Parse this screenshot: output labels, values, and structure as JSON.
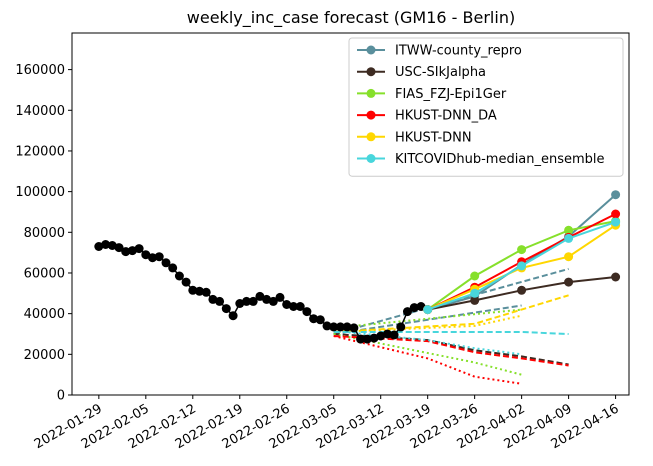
{
  "chart_data": {
    "type": "line",
    "title": "weekly_inc_case forecast (GM16 - Berlin)",
    "xlabel": "",
    "ylabel": "",
    "x_axis_type": "date",
    "xlim": [
      "2022-01-25",
      "2022-04-18"
    ],
    "ylim": [
      0,
      178000
    ],
    "x_ticks": [
      "2022-01-29",
      "2022-02-05",
      "2022-02-12",
      "2022-02-19",
      "2022-02-26",
      "2022-03-05",
      "2022-03-12",
      "2022-03-19",
      "2022-03-26",
      "2022-04-02",
      "2022-04-09",
      "2022-04-16"
    ],
    "y_ticks": [
      0,
      20000,
      40000,
      60000,
      80000,
      100000,
      120000,
      140000,
      160000
    ],
    "y_tick_labels": [
      "0",
      "20000",
      "40000",
      "60000",
      "80000",
      "100000",
      "120000",
      "140000",
      "160000"
    ],
    "grid": false,
    "legend_position": "top-right",
    "truth": {
      "color": "#000000",
      "x": [
        "2022-01-29",
        "2022-01-30",
        "2022-01-31",
        "2022-02-01",
        "2022-02-02",
        "2022-02-03",
        "2022-02-04",
        "2022-02-05",
        "2022-02-06",
        "2022-02-07",
        "2022-02-08",
        "2022-02-09",
        "2022-02-10",
        "2022-02-11",
        "2022-02-12",
        "2022-02-13",
        "2022-02-14",
        "2022-02-15",
        "2022-02-16",
        "2022-02-17",
        "2022-02-18",
        "2022-02-19",
        "2022-02-20",
        "2022-02-21",
        "2022-02-22",
        "2022-02-23",
        "2022-02-24",
        "2022-02-25",
        "2022-02-26",
        "2022-02-27",
        "2022-02-28",
        "2022-03-01",
        "2022-03-02",
        "2022-03-03",
        "2022-03-04",
        "2022-03-05",
        "2022-03-06",
        "2022-03-07",
        "2022-03-08",
        "2022-03-09",
        "2022-03-10",
        "2022-03-11",
        "2022-03-12",
        "2022-03-13",
        "2022-03-14",
        "2022-03-15",
        "2022-03-16",
        "2022-03-17",
        "2022-03-18",
        "2022-03-19"
      ],
      "values": [
        73000,
        74000,
        73500,
        72500,
        70500,
        71000,
        72000,
        69000,
        67500,
        68000,
        65000,
        62500,
        58500,
        55500,
        51500,
        51000,
        50500,
        47000,
        46000,
        42500,
        39000,
        45000,
        46000,
        46000,
        48500,
        47000,
        46000,
        48000,
        44500,
        43500,
        43500,
        41000,
        37500,
        37000,
        34000,
        33500,
        33500,
        33500,
        33000,
        27500,
        27500,
        28000,
        29000,
        30000,
        29500,
        33500,
        41000,
        43000,
        43500,
        42000
      ]
    },
    "series": [
      {
        "name": "ITWW-county_repro",
        "color": "#5a8f9c",
        "x": [
          "2022-03-19",
          "2022-03-26",
          "2022-04-02",
          "2022-04-09",
          "2022-04-16"
        ],
        "values": [
          42000,
          48500,
          64000,
          78000,
          98500
        ],
        "intervals": [
          {
            "x": [
              "2022-03-05",
              "2022-04-02"
            ],
            "values": [
              30000,
              44000
            ],
            "style": "dashed"
          },
          {
            "x": [
              "2022-03-05",
              "2022-04-09"
            ],
            "values": [
              30000,
              62000
            ],
            "style": "dashed"
          }
        ]
      },
      {
        "name": "USC-SIkJalpha",
        "color": "#3d2b22",
        "x": [
          "2022-03-19",
          "2022-03-26",
          "2022-04-02",
          "2022-04-09",
          "2022-04-16"
        ],
        "values": [
          42000,
          46500,
          51500,
          55500,
          58000
        ],
        "intervals": [
          {
            "x": [
              "2022-03-05",
              "2022-03-19",
              "2022-03-26",
              "2022-04-02",
              "2022-04-09"
            ],
            "values": [
              30000,
              27000,
              22000,
              19000,
              15000
            ],
            "style": "dashed"
          }
        ]
      },
      {
        "name": "FIAS_FZJ-Epi1Ger",
        "color": "#86e02b",
        "x": [
          "2022-03-19",
          "2022-03-26",
          "2022-04-02",
          "2022-04-09",
          "2022-04-16"
        ],
        "values": [
          42000,
          58500,
          71500,
          81000,
          85500
        ],
        "intervals": [
          {
            "x": [
              "2022-03-05",
              "2022-03-26",
              "2022-04-02"
            ],
            "values": [
              30000,
              16000,
              10000
            ],
            "style": "dotted"
          },
          {
            "x": [
              "2022-03-05",
              "2022-04-02"
            ],
            "values": [
              33000,
              42000
            ],
            "style": "dotted"
          }
        ]
      },
      {
        "name": "HKUST-DNN_DA",
        "color": "#ff0000",
        "x": [
          "2022-03-19",
          "2022-03-26",
          "2022-04-02",
          "2022-04-09",
          "2022-04-16"
        ],
        "values": [
          42000,
          53000,
          65500,
          77500,
          89000
        ],
        "intervals": [
          {
            "x": [
              "2022-03-05",
              "2022-03-19",
              "2022-03-26",
              "2022-04-02",
              "2022-04-09"
            ],
            "values": [
              29000,
              26500,
              21000,
              18000,
              14500
            ],
            "style": "dashed"
          },
          {
            "x": [
              "2022-03-05",
              "2022-03-19",
              "2022-03-26",
              "2022-04-02"
            ],
            "values": [
              29000,
              18000,
              9000,
              5500
            ],
            "style": "dotted"
          }
        ]
      },
      {
        "name": "HKUST-DNN",
        "color": "#ffd700",
        "x": [
          "2022-03-19",
          "2022-03-26",
          "2022-04-02",
          "2022-04-09",
          "2022-04-16"
        ],
        "values": [
          42000,
          52000,
          62500,
          68000,
          83500
        ],
        "intervals": [
          {
            "x": [
              "2022-03-05",
              "2022-03-26",
              "2022-04-09"
            ],
            "values": [
              31000,
              35000,
              49000
            ],
            "style": "dashed"
          },
          {
            "x": [
              "2022-03-05",
              "2022-03-26",
              "2022-04-02"
            ],
            "values": [
              31000,
              34000,
              39000
            ],
            "style": "dotted"
          }
        ]
      },
      {
        "name": "KITCOVIDhub-median_ensemble",
        "color": "#48d6dc",
        "x": [
          "2022-03-19",
          "2022-03-26",
          "2022-04-02",
          "2022-04-09",
          "2022-04-16"
        ],
        "values": [
          42000,
          50000,
          63500,
          77000,
          85000
        ],
        "intervals": [
          {
            "x": [
              "2022-03-05",
              "2022-03-19",
              "2022-04-02",
              "2022-04-09"
            ],
            "values": [
              31000,
              31000,
              31000,
              30000
            ],
            "style": "dashed"
          },
          {
            "x": [
              "2022-03-05",
              "2022-03-19",
              "2022-03-26",
              "2022-04-02"
            ],
            "values": [
              31500,
              27000,
              23000,
              20000
            ],
            "style": "dotted"
          }
        ]
      }
    ]
  }
}
